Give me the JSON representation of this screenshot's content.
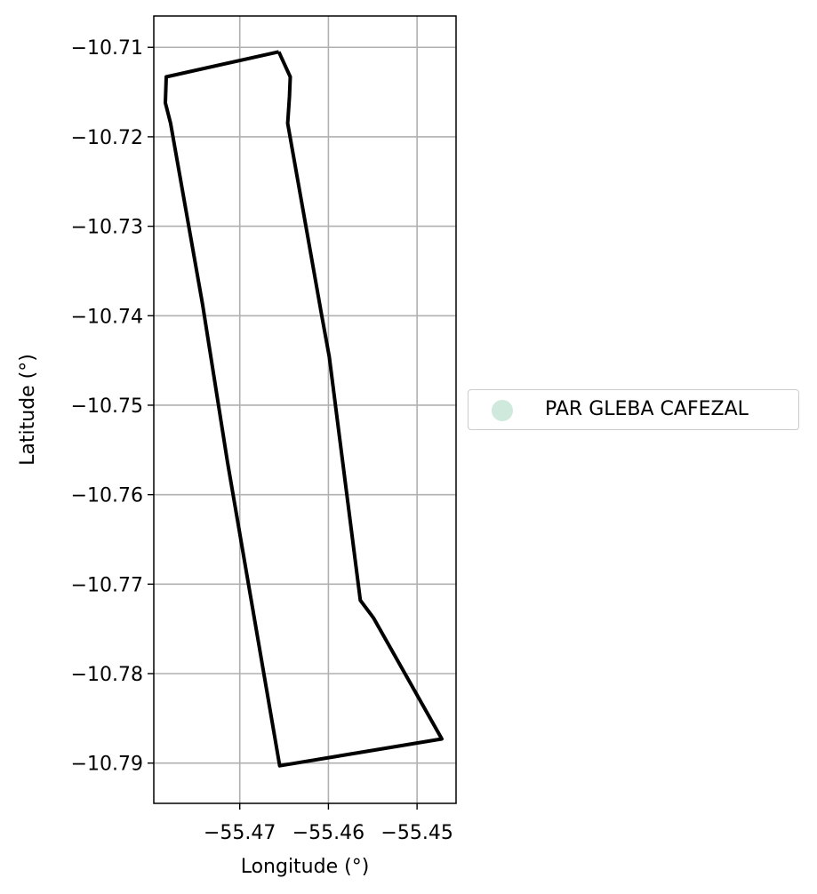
{
  "chart_data": {
    "type": "map",
    "xlabel": "Longitude (°)",
    "ylabel": "Latitude (°)",
    "xlim": [
      -55.4797,
      -55.4456
    ],
    "ylim": [
      -10.7945,
      -10.7065
    ],
    "x_ticks": [
      -55.47,
      -55.46,
      -55.45
    ],
    "x_tick_labels": [
      "−55.47",
      "−55.46",
      "−55.45"
    ],
    "y_ticks": [
      -10.71,
      -10.72,
      -10.73,
      -10.74,
      -10.75,
      -10.76,
      -10.77,
      -10.78,
      -10.79
    ],
    "y_tick_labels": [
      "−10.71",
      "−10.72",
      "−10.73",
      "−10.74",
      "−10.75",
      "−10.76",
      "−10.77",
      "−10.78",
      "−10.79"
    ],
    "grid": true,
    "legend_placement": "right",
    "series": [
      {
        "name": "PAR GLEBA CAFEZAL",
        "geometry": "polygon-outline",
        "color": "#000000",
        "legend_marker_color": "#cfe9dc",
        "points": [
          [
            -55.4656,
            -10.7105
          ],
          [
            -55.4643,
            -10.7133
          ],
          [
            -55.4644,
            -10.7155
          ],
          [
            -55.4646,
            -10.7185
          ],
          [
            -55.4608,
            -10.7397
          ],
          [
            -55.4599,
            -10.7446
          ],
          [
            -55.4564,
            -10.7718
          ],
          [
            -55.4549,
            -10.7738
          ],
          [
            -55.4472,
            -10.7873
          ],
          [
            -55.4655,
            -10.7903
          ],
          [
            -55.4714,
            -10.7563
          ],
          [
            -55.4742,
            -10.7387
          ],
          [
            -55.4778,
            -10.7185
          ],
          [
            -55.4784,
            -10.7162
          ],
          [
            -55.4783,
            -10.7133
          ],
          [
            -55.4656,
            -10.7105
          ]
        ]
      }
    ]
  }
}
